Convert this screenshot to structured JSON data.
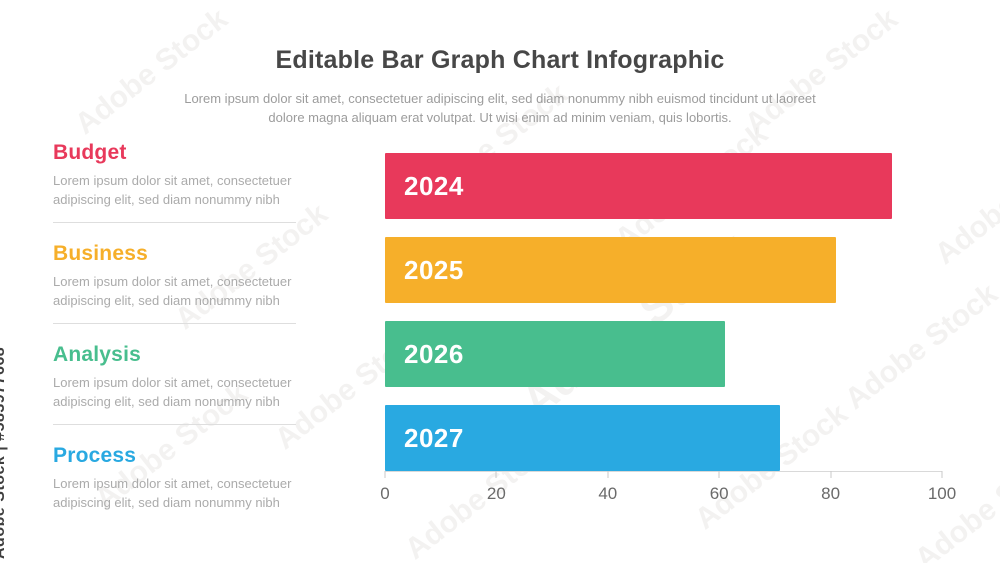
{
  "watermark": {
    "diagonal_text": "Adobe Stock",
    "id_text": "Adobe Stock | #583977668"
  },
  "header": {
    "title": "Editable Bar Graph Chart Infographic",
    "subtitle_lines": [
      "Lorem ipsum dolor sit amet, consectetuer adipiscing elit, sed diam nonummy nibh euismod tincidunt ut laoreet",
      "dolore magna aliquam erat volutpat. Ut wisi enim ad minim veniam, quis lobortis."
    ]
  },
  "categories": [
    {
      "label": "Budget",
      "color": "#e8395b",
      "description": "Lorem ipsum dolor sit amet, consectetuer adipiscing elit, sed diam nonummy nibh"
    },
    {
      "label": "Business",
      "color": "#f6af2a",
      "description": "Lorem ipsum dolor sit amet, consectetuer adipiscing elit, sed diam nonummy nibh"
    },
    {
      "label": "Analysis",
      "color": "#48be8e",
      "description": "Lorem ipsum dolor sit amet, consectetuer adipiscing elit, sed diam nonummy nibh"
    },
    {
      "label": "Process",
      "color": "#29a9e1",
      "description": "Lorem ipsum dolor sit amet, consectetuer adipiscing elit, sed diam nonummy nibh"
    }
  ],
  "chart_data": {
    "type": "bar",
    "orientation": "horizontal",
    "title": "Editable Bar Graph Chart Infographic",
    "categories": [
      "2024",
      "2025",
      "2026",
      "2027"
    ],
    "values": [
      91,
      81,
      61,
      71
    ],
    "colors": [
      "#e8395b",
      "#f6af2a",
      "#48be8e",
      "#29a9e1"
    ],
    "xlim": [
      0,
      100
    ],
    "xticks": [
      0,
      20,
      40,
      60,
      80,
      100
    ],
    "xlabel": "",
    "ylabel": "",
    "grid": false,
    "bar_labels_inside": true,
    "legend_position": "left"
  },
  "colors": {
    "title_text": "#474747",
    "body_text": "#ababab",
    "axis_text": "#6a6a6a",
    "divider": "#dedede"
  }
}
